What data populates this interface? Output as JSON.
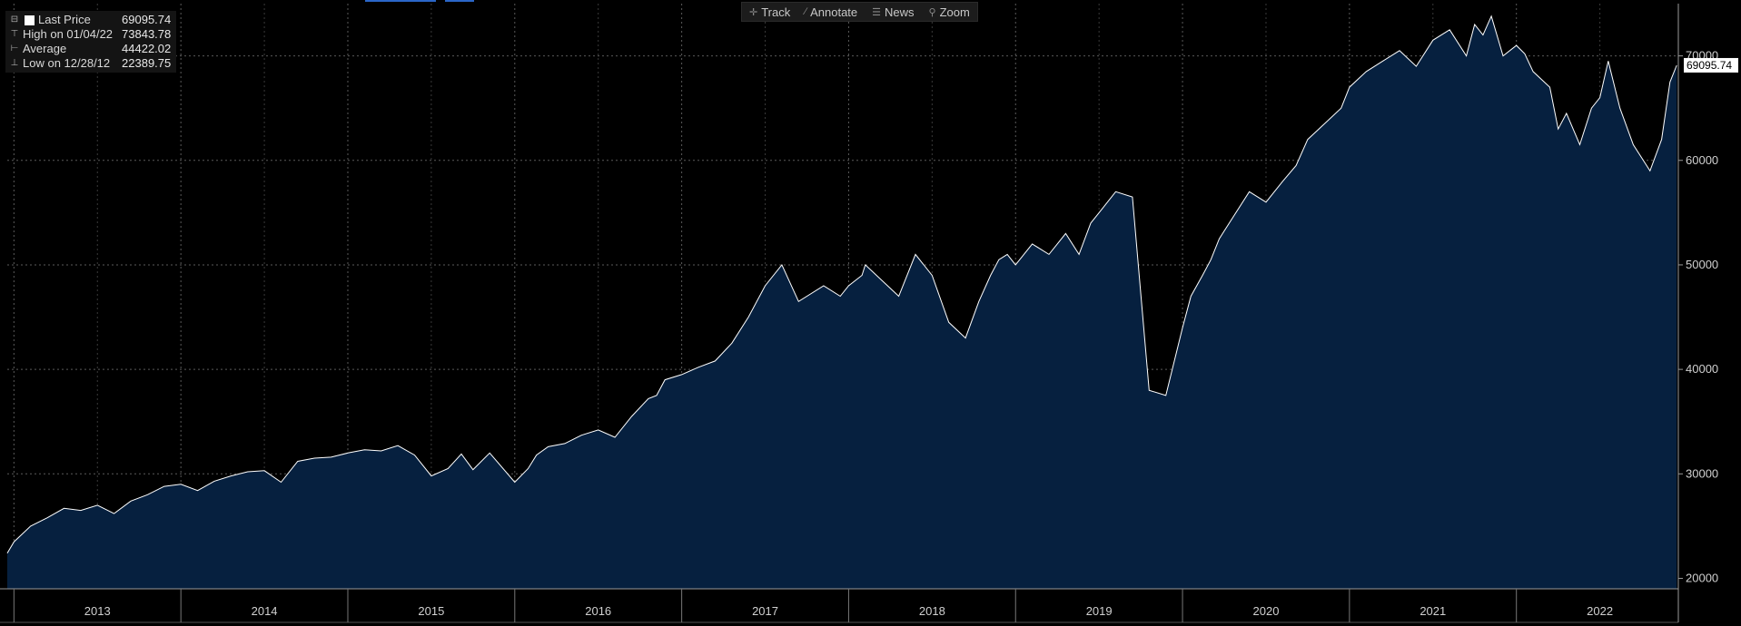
{
  "toolbar": {
    "track_label": "Track",
    "annotate_label": "Annotate",
    "news_label": "News",
    "zoom_label": "Zoom"
  },
  "legend": {
    "last_price_label": "Last Price",
    "last_price_value": "69095.74",
    "high_label": "High on 01/04/22",
    "high_value": "73843.78",
    "average_label": "Average",
    "average_value": "44422.02",
    "low_label": "Low on 12/28/12",
    "low_value": "22389.75"
  },
  "colors": {
    "background": "#000000",
    "area_fill": "#06203f",
    "line": "#ffffff",
    "grid": "#5a5a5a",
    "accent": "#2a66c8"
  },
  "chart_data": {
    "type": "area",
    "x_axis_labels": [
      "2013",
      "2014",
      "2015",
      "2016",
      "2017",
      "2018",
      "2019",
      "2020",
      "2021",
      "2022"
    ],
    "y_ticks": [
      20000,
      30000,
      40000,
      50000,
      60000,
      70000
    ],
    "y_tick_labels": [
      "20000",
      "30000",
      "40000",
      "50000",
      "60000",
      "70000"
    ],
    "ylim": [
      19000,
      75000
    ],
    "xlim": [
      2012.96,
      2022.97
    ],
    "last_price_label": "69095.74",
    "grid": true,
    "series": [
      {
        "x": [
          2012.96,
          2013.0,
          2013.1,
          2013.2,
          2013.3,
          2013.4,
          2013.5,
          2013.6,
          2013.7,
          2013.8,
          2013.9,
          2014.0,
          2014.1,
          2014.2,
          2014.3,
          2014.4,
          2014.5,
          2014.6,
          2014.7,
          2014.8,
          2014.9,
          2015.0,
          2015.1,
          2015.2,
          2015.3,
          2015.4,
          2015.5,
          2015.6,
          2015.68,
          2015.75,
          2015.85,
          2016.0,
          2016.08,
          2016.13,
          2016.2,
          2016.3,
          2016.4,
          2016.5,
          2016.6,
          2016.7,
          2016.8,
          2016.85,
          2016.9,
          2017.0,
          2017.1,
          2017.2,
          2017.3,
          2017.4,
          2017.5,
          2017.6,
          2017.7,
          2017.85,
          2017.95,
          2018.0,
          2018.08,
          2018.1,
          2018.2,
          2018.3,
          2018.4,
          2018.5,
          2018.6,
          2018.7,
          2018.78,
          2018.85,
          2018.9,
          2018.95,
          2019.0,
          2019.1,
          2019.2,
          2019.3,
          2019.38,
          2019.45,
          2019.5,
          2019.6,
          2019.7,
          2019.8,
          2019.9,
          2020.0,
          2020.05,
          2020.12,
          2020.17,
          2020.22,
          2020.3,
          2020.4,
          2020.5,
          2020.6,
          2020.68,
          2020.75,
          2020.85,
          2020.95,
          2021.0,
          2021.1,
          2021.2,
          2021.3,
          2021.4,
          2021.5,
          2021.6,
          2021.7,
          2021.75,
          2021.8,
          2021.85,
          2021.92,
          2022.0,
          2022.05,
          2022.1,
          2022.2,
          2022.25,
          2022.3,
          2022.38,
          2022.45,
          2022.5,
          2022.55,
          2022.62,
          2022.7,
          2022.8,
          2022.87,
          2022.92,
          2022.96
        ],
        "y": [
          22400,
          23500,
          25000,
          25800,
          26700,
          26500,
          27000,
          26200,
          27400,
          28000,
          28800,
          29000,
          28400,
          29300,
          29800,
          30200,
          30300,
          29200,
          31200,
          31500,
          31600,
          32000,
          32300,
          32200,
          32700,
          31800,
          29800,
          30500,
          31900,
          30400,
          32000,
          29200,
          30500,
          31800,
          32600,
          32900,
          33700,
          34200,
          33500,
          35500,
          37200,
          37500,
          39000,
          39500,
          40200,
          40800,
          42500,
          45000,
          48000,
          50000,
          46500,
          48000,
          47000,
          48000,
          49000,
          50000,
          48500,
          47000,
          51000,
          49000,
          44500,
          43000,
          46500,
          49000,
          50500,
          51000,
          50000,
          52000,
          51000,
          53000,
          51000,
          54000,
          55000,
          57000,
          56500,
          38000,
          37500,
          44000,
          47000,
          49000,
          50500,
          52500,
          54500,
          57000,
          56000,
          58000,
          59500,
          62000,
          63500,
          65000,
          67000,
          68500,
          69500,
          70500,
          69000,
          71500,
          72500,
          70000,
          73000,
          72000,
          73800,
          70000,
          71000,
          70200,
          68500,
          67000,
          63000,
          64500,
          61500,
          65000,
          66000,
          69500,
          65000,
          61500,
          59000,
          62000,
          67500,
          69100
        ]
      }
    ]
  }
}
